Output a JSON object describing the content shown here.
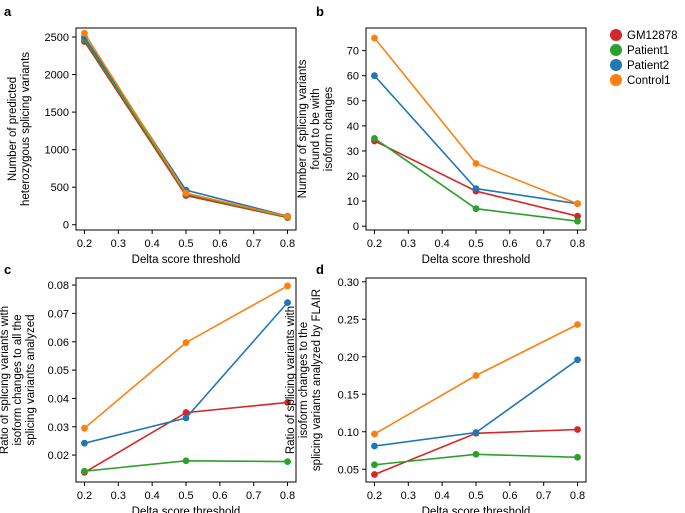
{
  "colors": {
    "GM12878": "#d62728",
    "Patient1": "#2ca02c",
    "Patient2": "#1f77b4",
    "Control1": "#ff7f0e"
  },
  "legend": [
    "GM12878",
    "Patient1",
    "Patient2",
    "Control1"
  ],
  "chart_data": [
    {
      "panel": "a",
      "type": "line",
      "xlabel": "Delta score threshold",
      "ylabel": [
        "Number of predicted",
        "heterozygous splicing variants"
      ],
      "x": [
        0.2,
        0.5,
        0.8
      ],
      "xlim": [
        0.175,
        0.825
      ],
      "xticks": [
        "0.2",
        "0.3",
        "0.4",
        "0.5",
        "0.6",
        "0.7",
        "0.8"
      ],
      "ylim": [
        -70,
        2620
      ],
      "yticks": [
        "0",
        "500",
        "1000",
        "1500",
        "2000",
        "2500"
      ],
      "series": [
        {
          "name": "Control1",
          "values": [
            2550,
            420,
            110
          ]
        },
        {
          "name": "Patient2",
          "values": [
            2500,
            460,
            115
          ]
        },
        {
          "name": "Patient1",
          "values": [
            2470,
            410,
            100
          ]
        },
        {
          "name": "GM12878",
          "values": [
            2440,
            390,
            95
          ]
        }
      ]
    },
    {
      "panel": "b",
      "type": "line",
      "xlabel": "Delta score threshold",
      "ylabel": [
        "Number of splicing variants",
        "found to be with",
        "isoform changes"
      ],
      "x": [
        0.2,
        0.5,
        0.8
      ],
      "xlim": [
        0.175,
        0.825
      ],
      "xticks": [
        "0.2",
        "0.3",
        "0.4",
        "0.5",
        "0.6",
        "0.7",
        "0.8"
      ],
      "ylim": [
        -1.5,
        79
      ],
      "yticks": [
        "0",
        "10",
        "20",
        "30",
        "40",
        "50",
        "60",
        "70"
      ],
      "series": [
        {
          "name": "Control1",
          "values": [
            75,
            25,
            9
          ]
        },
        {
          "name": "Patient2",
          "values": [
            60,
            15,
            9
          ]
        },
        {
          "name": "Patient1",
          "values": [
            35,
            7,
            2
          ]
        },
        {
          "name": "GM12878",
          "values": [
            34,
            14,
            4
          ]
        }
      ]
    },
    {
      "panel": "c",
      "type": "line",
      "xlabel": "Delta score threshold",
      "ylabel": [
        "Ratio of splicing variants with",
        "isoform changes to all the",
        "splicing variants analyzed"
      ],
      "x": [
        0.2,
        0.5,
        0.8
      ],
      "xlim": [
        0.175,
        0.825
      ],
      "xticks": [
        "0.2",
        "0.3",
        "0.4",
        "0.5",
        "0.6",
        "0.7",
        "0.8"
      ],
      "ylim": [
        0.0105,
        0.0825
      ],
      "yticks": [
        "0.02",
        "0.03",
        "0.04",
        "0.05",
        "0.06",
        "0.07",
        "0.08"
      ],
      "series": [
        {
          "name": "Control1",
          "values": [
            0.0295,
            0.0597,
            0.0797
          ]
        },
        {
          "name": "Patient2",
          "values": [
            0.0242,
            0.0331,
            0.0738
          ]
        },
        {
          "name": "Patient1",
          "values": [
            0.0143,
            0.018,
            0.0177
          ]
        },
        {
          "name": "GM12878",
          "values": [
            0.0139,
            0.035,
            0.0386
          ]
        }
      ]
    },
    {
      "panel": "d",
      "type": "line",
      "xlabel": "Delta score threshold",
      "ylabel": [
        "Ratio of splicing variants with",
        "isoform changes to the",
        "splicing variants analyzed by FLAIR"
      ],
      "x": [
        0.2,
        0.5,
        0.8
      ],
      "xlim": [
        0.175,
        0.825
      ],
      "xticks": [
        "0.2",
        "0.3",
        "0.4",
        "0.5",
        "0.6",
        "0.7",
        "0.8"
      ],
      "ylim": [
        0.033,
        0.305
      ],
      "yticks": [
        "0.05",
        "0.10",
        "0.15",
        "0.20",
        "0.25",
        "0.30"
      ],
      "series": [
        {
          "name": "Control1",
          "values": [
            0.097,
            0.175,
            0.243
          ]
        },
        {
          "name": "Patient2",
          "values": [
            0.081,
            0.099,
            0.196
          ]
        },
        {
          "name": "Patient1",
          "values": [
            0.056,
            0.07,
            0.066
          ]
        },
        {
          "name": "GM12878",
          "values": [
            0.043,
            0.098,
            0.103
          ]
        }
      ]
    }
  ]
}
